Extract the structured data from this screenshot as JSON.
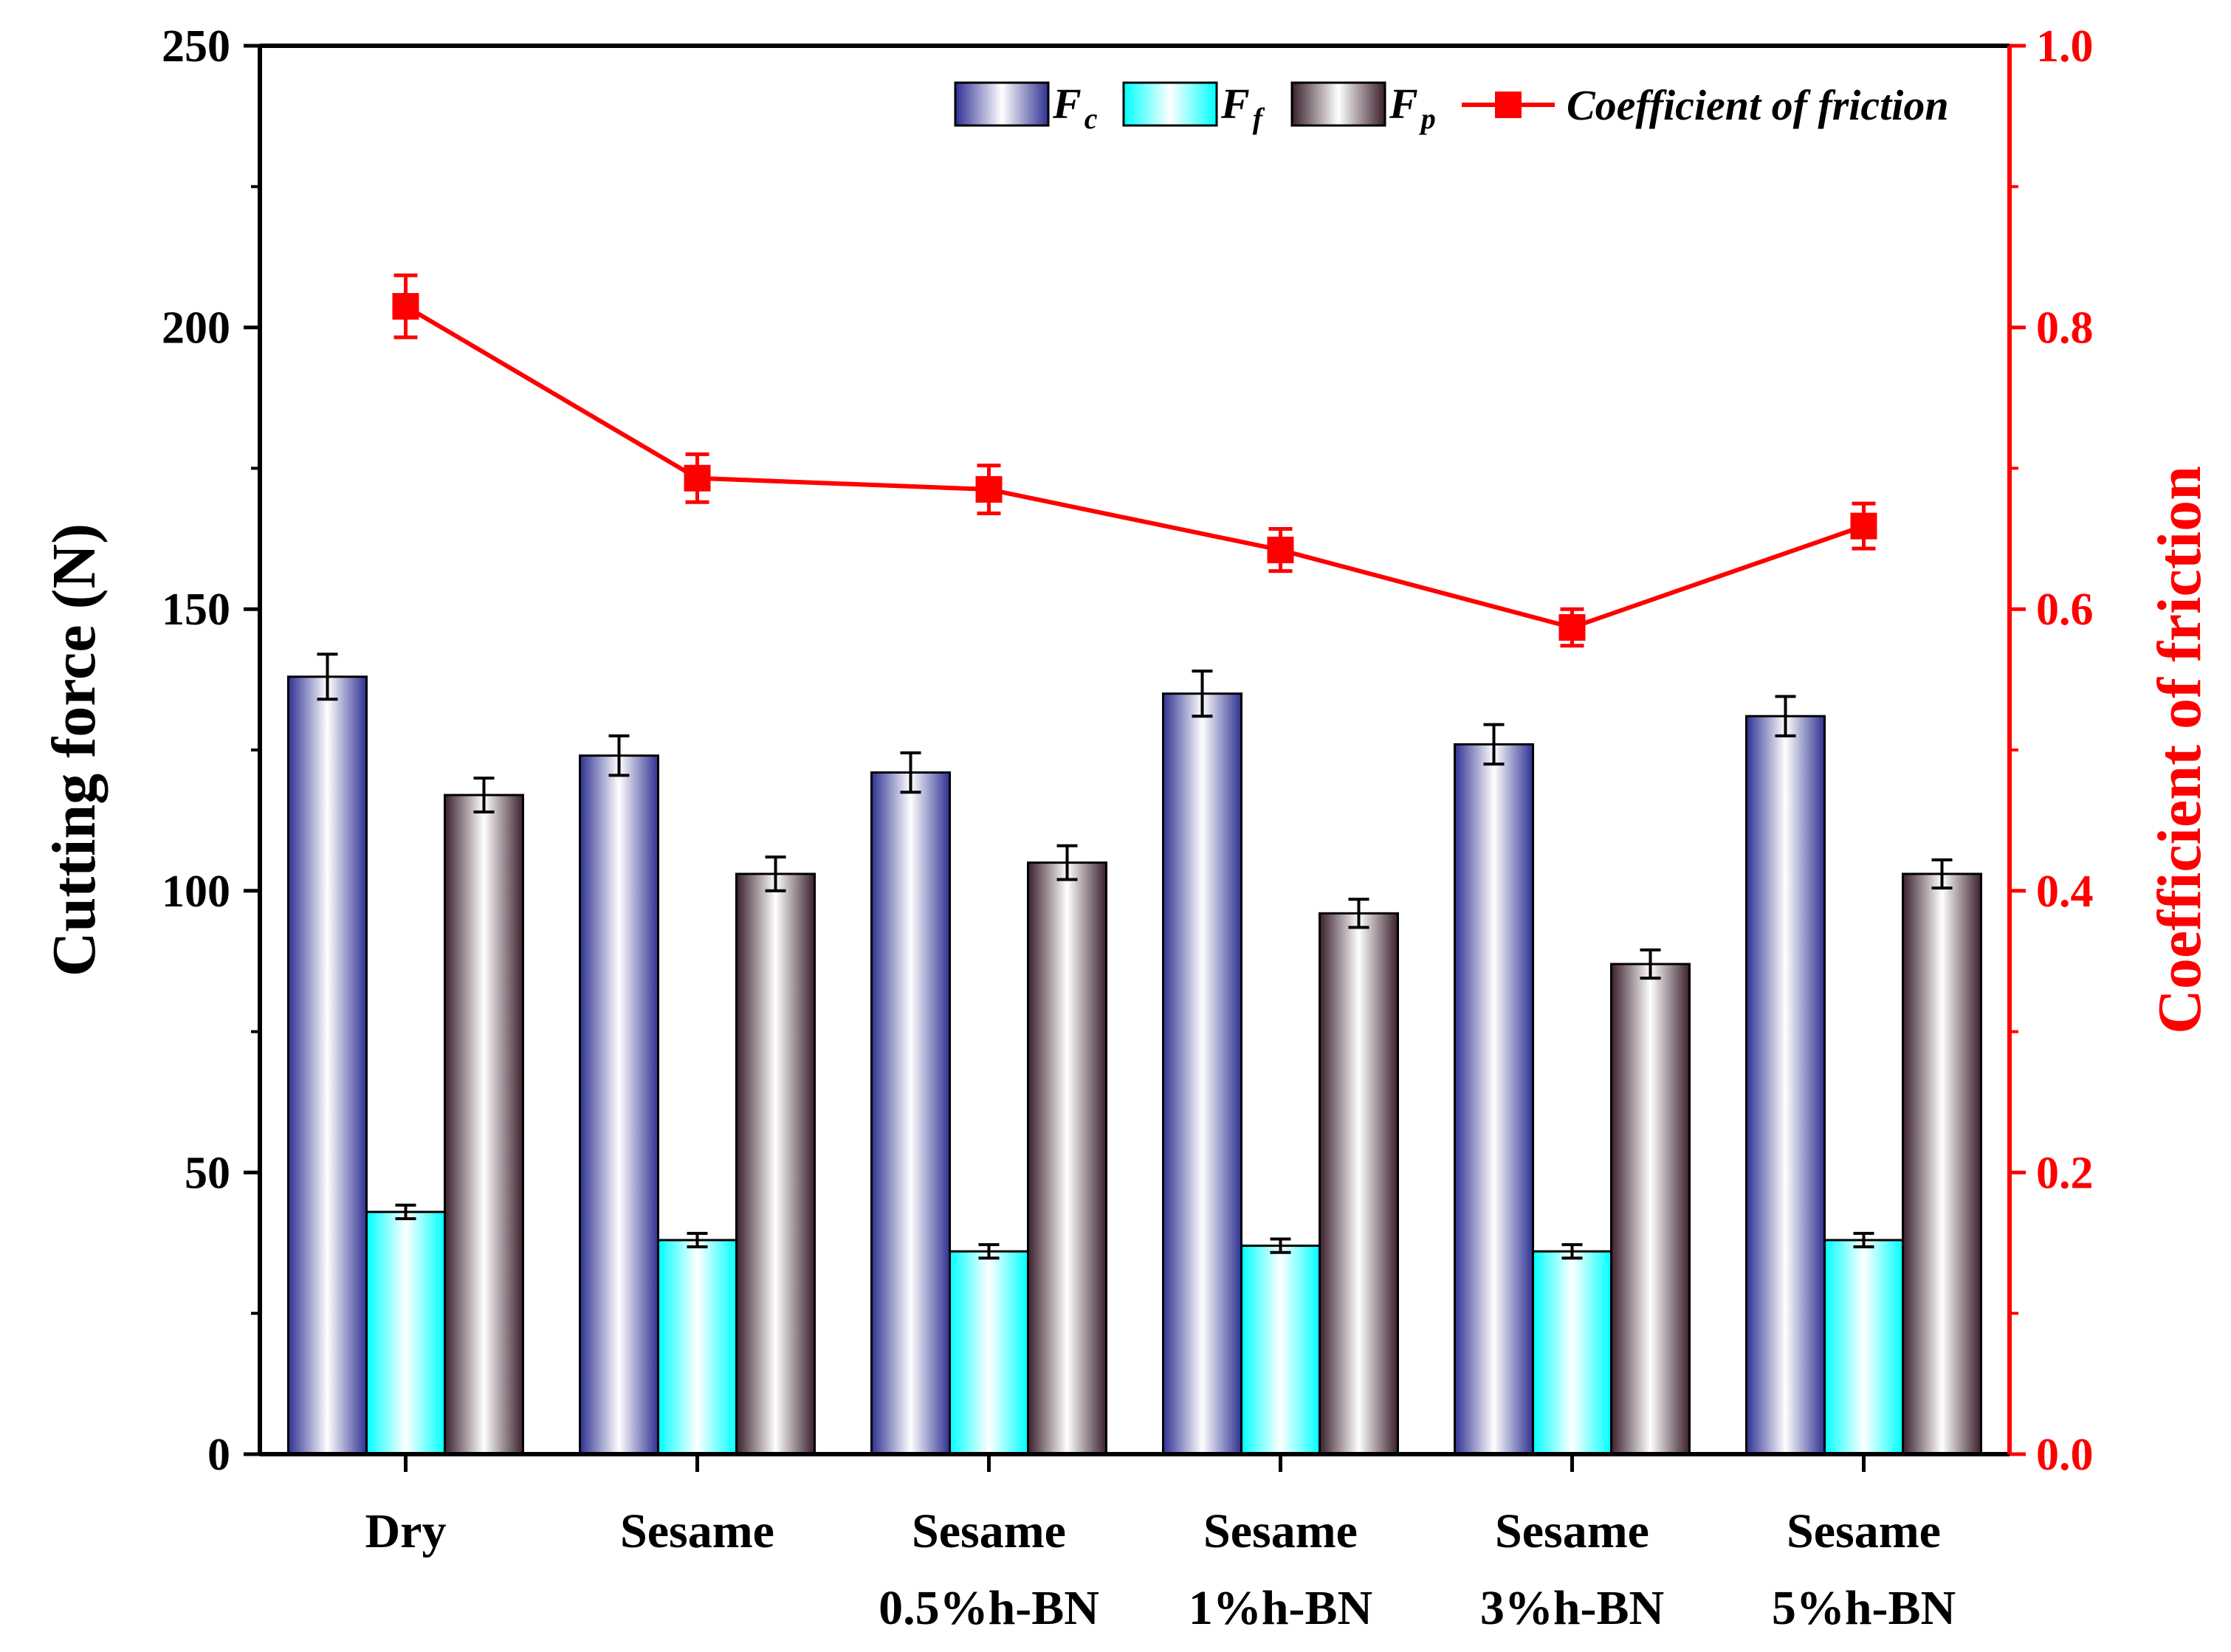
{
  "chart_data": {
    "type": "bar",
    "categories": [
      [
        "Dry"
      ],
      [
        "Sesame"
      ],
      [
        "Sesame",
        "0.5%h-BN"
      ],
      [
        "Sesame",
        "1%h-BN"
      ],
      [
        "Sesame",
        "3%h-BN"
      ],
      [
        "Sesame",
        "5%h-BN"
      ]
    ],
    "series": [
      {
        "name": "F",
        "subscript": "c",
        "values": [
          138,
          124,
          121,
          135,
          126,
          131
        ],
        "errors": [
          4,
          3.5,
          3.5,
          4,
          3.5,
          3.5
        ],
        "color": "#2e3192",
        "axis": "left"
      },
      {
        "name": "F",
        "subscript": "f",
        "values": [
          43,
          38,
          36,
          37,
          36,
          38
        ],
        "errors": [
          1.2,
          1.2,
          1.2,
          1.2,
          1.2,
          1.2
        ],
        "color": "#00ffff",
        "axis": "left"
      },
      {
        "name": "F",
        "subscript": "p",
        "values": [
          117,
          103,
          105,
          96,
          87,
          103
        ],
        "errors": [
          3,
          3,
          3,
          2.5,
          2.5,
          2.5
        ],
        "color": "#3a1f2c",
        "axis": "left"
      }
    ],
    "line_series": {
      "name": "Coefficient of friction",
      "values": [
        0.815,
        0.693,
        0.685,
        0.642,
        0.587,
        0.659
      ],
      "errors": [
        0.022,
        0.017,
        0.017,
        0.015,
        0.013,
        0.016
      ],
      "color": "#ff0000",
      "axis": "right"
    },
    "ylabel": "Cutting force (N)",
    "y2label": "Coefficient of friction",
    "ylim": [
      0,
      250
    ],
    "y2lim": [
      0,
      1.0
    ],
    "yticks": [
      "0",
      "50",
      "100",
      "150",
      "200",
      "250"
    ],
    "y2ticks": [
      "0.0",
      "0.2",
      "0.4",
      "0.6",
      "0.8",
      "1.0"
    ],
    "legend_position": "top-right"
  }
}
